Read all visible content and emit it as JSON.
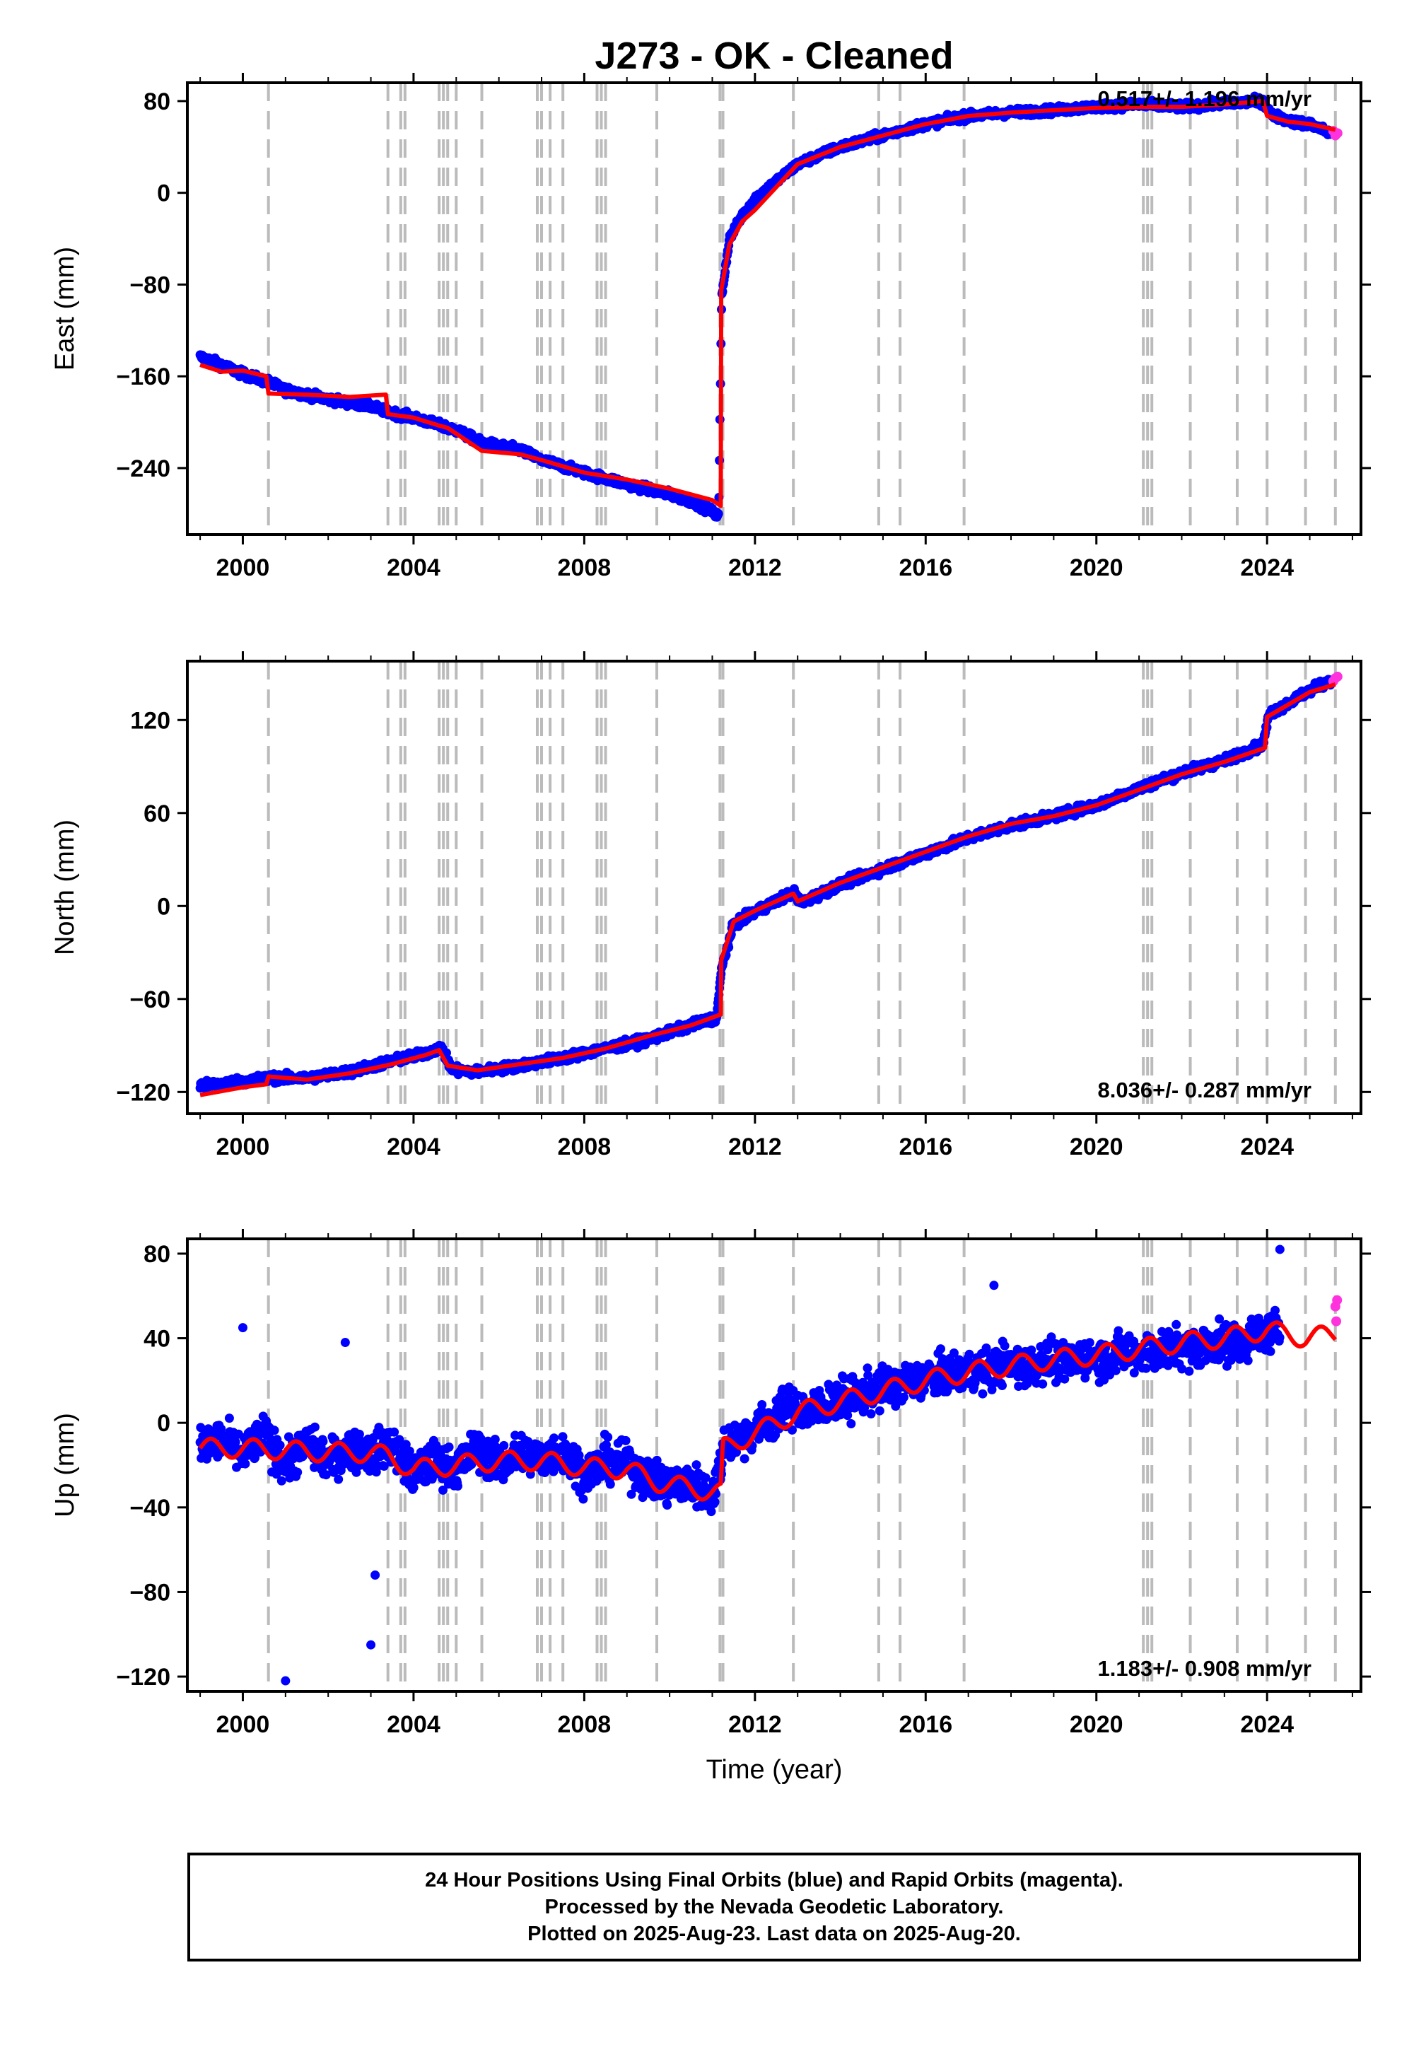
{
  "title": "J273  - OK - Cleaned",
  "xlabel": "Time (year)",
  "footer": {
    "line1": "24 Hour Positions Using Final Orbits (blue) and Rapid Orbits (magenta).",
    "line2": "Processed by the Nevada Geodetic Laboratory.",
    "line3": "Plotted on 2025-Aug-23. Last data on 2025-Aug-20."
  },
  "colors": {
    "final": "#0000ff",
    "rapid": "#ff33dd",
    "model": "#ff0000",
    "steps": "#bbbbbb"
  },
  "chart_data": [
    {
      "type": "scatter",
      "panel": "east",
      "ylabel": "East (mm)",
      "rate_text": "0.517+/- 1.196 mm/yr",
      "xlim": [
        1998.7,
        2026.2
      ],
      "ylim": [
        -298,
        96
      ],
      "xticks": [
        2000,
        2004,
        2008,
        2012,
        2016,
        2020,
        2024
      ],
      "yticks": [
        80,
        0,
        -80,
        -160,
        -240
      ],
      "step_lines": [
        2000.6,
        2003.4,
        2003.7,
        2003.8,
        2004.6,
        2004.7,
        2004.8,
        2005.0,
        2005.6,
        2006.9,
        2007.0,
        2007.2,
        2007.5,
        2008.3,
        2008.4,
        2008.5,
        2009.7,
        2011.18,
        2011.25,
        2012.9,
        2014.9,
        2015.4,
        2016.9,
        2021.1,
        2021.2,
        2021.3,
        2022.2,
        2023.3,
        2024.0,
        2024.9,
        2025.6
      ],
      "series": [
        {
          "name": "model",
          "x": [
            1999.0,
            1999.5,
            2000.0,
            2000.55,
            2000.6,
            2001.5,
            2002.5,
            2003.35,
            2003.4,
            2004.0,
            2004.6,
            2004.8,
            2005.6,
            2006.5,
            2007.0,
            2008.0,
            2009.0,
            2010.0,
            2011.0,
            2011.2,
            2011.21,
            2011.4,
            2011.7,
            2012.0,
            2012.5,
            2013.0,
            2014.0,
            2015.0,
            2016.0,
            2017.0,
            2018.0,
            2019.0,
            2020.0,
            2021.0,
            2022.0,
            2023.0,
            2023.9,
            2024.0,
            2024.5,
            2025.0,
            2025.6
          ],
          "y": [
            -150,
            -156,
            -155,
            -160,
            -175,
            -176,
            -178,
            -176,
            -193,
            -196,
            -203,
            -205,
            -225,
            -228,
            -233,
            -244,
            -250,
            -258,
            -268,
            -273,
            -85,
            -45,
            -25,
            -15,
            5,
            25,
            40,
            50,
            60,
            67,
            70,
            72,
            74,
            75,
            75,
            77,
            80,
            67,
            62,
            60,
            55
          ]
        },
        {
          "name": "final",
          "x": [
            1999.0,
            1999.5,
            2000.0,
            2000.6,
            2001.0,
            2002.0,
            2003.0,
            2003.4,
            2004.0,
            2005.0,
            2005.6,
            2006.5,
            2007.0,
            2008.0,
            2009.0,
            2010.0,
            2010.6,
            2011.0,
            2011.15,
            2011.22,
            2011.4,
            2011.7,
            2012.0,
            2012.5,
            2013.0,
            2014.0,
            2015.0,
            2016.0,
            2017.0,
            2018.0,
            2019.0,
            2020.0,
            2021.0,
            2022.0,
            2023.0,
            2023.9,
            2024.1,
            2024.6,
            2025.0,
            2025.5
          ],
          "y": [
            -143,
            -150,
            -158,
            -165,
            -172,
            -180,
            -186,
            -191,
            -196,
            -207,
            -218,
            -224,
            -233,
            -244,
            -254,
            -263,
            -270,
            -278,
            -282,
            -90,
            -40,
            -20,
            -5,
            10,
            25,
            40,
            50,
            60,
            67,
            70,
            72,
            75,
            77,
            75,
            78,
            80,
            68,
            62,
            60,
            52
          ]
        },
        {
          "name": "rapid",
          "x": [
            2025.55,
            2025.6,
            2025.65
          ],
          "y": [
            54,
            50,
            52
          ]
        }
      ]
    },
    {
      "type": "scatter",
      "panel": "north",
      "ylabel": "North (mm)",
      "rate_text": "8.036+/- 0.287 mm/yr",
      "xlim": [
        1998.7,
        2026.2
      ],
      "ylim": [
        -134,
        158
      ],
      "xticks": [
        2000,
        2004,
        2008,
        2012,
        2016,
        2020,
        2024
      ],
      "yticks": [
        120,
        60,
        0,
        -60,
        -120
      ],
      "step_lines": [
        2000.6,
        2003.4,
        2003.7,
        2003.8,
        2004.6,
        2004.7,
        2004.8,
        2005.0,
        2005.6,
        2006.9,
        2007.0,
        2007.2,
        2007.5,
        2008.3,
        2008.4,
        2008.5,
        2009.7,
        2011.18,
        2011.25,
        2012.9,
        2014.9,
        2015.4,
        2016.9,
        2021.1,
        2021.2,
        2021.3,
        2022.2,
        2023.3,
        2024.0,
        2024.9,
        2025.6
      ],
      "series": [
        {
          "name": "model",
          "x": [
            1999.0,
            2000.0,
            2000.55,
            2000.6,
            2001.5,
            2002.5,
            2003.5,
            2004.3,
            2004.6,
            2004.8,
            2005.5,
            2006.5,
            2007.5,
            2008.5,
            2009.5,
            2010.5,
            2011.2,
            2011.21,
            2011.5,
            2012.0,
            2012.9,
            2013.0,
            2014.0,
            2015.0,
            2016.0,
            2017.0,
            2018.0,
            2019.0,
            2020.0,
            2021.0,
            2022.0,
            2023.0,
            2023.95,
            2024.0,
            2024.5,
            2025.0,
            2025.6
          ],
          "y": [
            -122,
            -117,
            -115,
            -110,
            -112,
            -108,
            -102,
            -96,
            -93,
            -103,
            -106,
            -102,
            -98,
            -92,
            -84,
            -77,
            -70,
            -35,
            -10,
            -3,
            8,
            3,
            15,
            25,
            35,
            45,
            53,
            58,
            65,
            75,
            85,
            93,
            102,
            122,
            130,
            138,
            143
          ]
        },
        {
          "name": "final",
          "x": [
            1999.0,
            2000.0,
            2000.6,
            2001.5,
            2002.5,
            2003.5,
            2004.3,
            2004.65,
            2004.9,
            2005.5,
            2006.5,
            2007.5,
            2008.5,
            2009.5,
            2010.5,
            2011.1,
            2011.22,
            2011.5,
            2012.0,
            2012.9,
            2013.1,
            2014.0,
            2015.0,
            2016.0,
            2017.0,
            2018.0,
            2019.0,
            2020.0,
            2021.0,
            2022.0,
            2023.0,
            2023.9,
            2024.05,
            2024.5,
            2025.0,
            2025.5
          ],
          "y": [
            -116,
            -113,
            -111,
            -111,
            -107,
            -100,
            -95,
            -91,
            -106,
            -107,
            -103,
            -98,
            -92,
            -86,
            -77,
            -72,
            -40,
            -12,
            -4,
            9,
            2,
            14,
            24,
            34,
            44,
            52,
            58,
            65,
            76,
            86,
            94,
            104,
            124,
            131,
            139,
            146
          ]
        },
        {
          "name": "rapid",
          "x": [
            2025.55,
            2025.6,
            2025.65
          ],
          "y": [
            145,
            147,
            148
          ]
        }
      ]
    },
    {
      "type": "scatter",
      "panel": "up",
      "ylabel": "Up (mm)",
      "rate_text": "1.183+/- 0.908 mm/yr",
      "xlim": [
        1998.7,
        2026.2
      ],
      "ylim": [
        -127,
        87
      ],
      "xticks": [
        2000,
        2004,
        2008,
        2012,
        2016,
        2020,
        2024
      ],
      "yticks": [
        80,
        40,
        0,
        -40,
        -80,
        -120
      ],
      "step_lines": [
        2000.6,
        2003.4,
        2003.7,
        2003.8,
        2004.6,
        2004.7,
        2004.8,
        2005.0,
        2005.6,
        2006.9,
        2007.0,
        2007.2,
        2007.5,
        2008.3,
        2008.4,
        2008.5,
        2009.7,
        2011.18,
        2011.25,
        2012.9,
        2014.9,
        2015.4,
        2016.9,
        2021.1,
        2021.2,
        2021.3,
        2022.2,
        2023.3,
        2024.0,
        2024.9,
        2025.6
      ],
      "series": [
        {
          "name": "model",
          "x": [
            1999.0,
            2000.0,
            2001.0,
            2002.0,
            2003.0,
            2003.4,
            2004.0,
            2005.0,
            2006.0,
            2007.0,
            2008.0,
            2009.0,
            2009.7,
            2010.5,
            2011.2,
            2011.25,
            2012.0,
            2013.0,
            2014.0,
            2015.0,
            2016.0,
            2017.0,
            2018.0,
            2019.0,
            2020.0,
            2021.0,
            2022.0,
            2023.0,
            2024.0,
            2024.9,
            2025.6
          ],
          "y": [
            -12,
            -12,
            -13,
            -14,
            -14,
            -16,
            -22,
            -20,
            -18,
            -18,
            -21,
            -22,
            -28,
            -31,
            -33,
            -12,
            -5,
            5,
            10,
            15,
            20,
            24,
            27,
            30,
            32,
            35,
            38,
            40,
            44,
            40,
            42
          ]
        },
        {
          "name": "final",
          "x": [
            1999.0,
            1999.5,
            2000.0,
            2000.5,
            2001.0,
            2001.5,
            2002.0,
            2002.5,
            2003.0,
            2003.5,
            2004.0,
            2004.5,
            2005.0,
            2005.5,
            2006.0,
            2006.5,
            2007.0,
            2007.5,
            2008.0,
            2008.5,
            2009.0,
            2009.5,
            2010.0,
            2010.5,
            2011.0,
            2011.3,
            2011.8,
            2012.3,
            2012.8,
            2013.3,
            2013.8,
            2014.3,
            2014.8,
            2015.3,
            2015.8,
            2016.3,
            2016.8,
            2017.3,
            2017.8,
            2018.3,
            2018.8,
            2019.3,
            2019.8,
            2020.3,
            2020.8,
            2021.3,
            2021.8,
            2022.3,
            2022.8,
            2023.3,
            2023.8,
            2024.3,
            2024.8,
            2025.3,
            2025.5,
            2001.0,
            2003.0,
            2003.1,
            2000.0,
            2002.4,
            2017.6,
            2024.3
          ],
          "y": [
            -12,
            -8,
            -15,
            -6,
            -20,
            -10,
            -18,
            -12,
            -15,
            -10,
            -25,
            -18,
            -22,
            -12,
            -20,
            -14,
            -17,
            -13,
            -24,
            -18,
            -20,
            -26,
            -30,
            -28,
            -35,
            -10,
            -5,
            0,
            8,
            5,
            10,
            12,
            15,
            18,
            20,
            22,
            25,
            24,
            28,
            26,
            30,
            28,
            32,
            30,
            34,
            33,
            36,
            35,
            38,
            37,
            42,
            44,
            40,
            38,
            35,
            -122,
            -105,
            -72,
            45,
            38,
            65,
            82
          ]
        },
        {
          "name": "rapid",
          "x": [
            2025.6,
            2025.62,
            2025.64
          ],
          "y": [
            55,
            48,
            58
          ]
        }
      ]
    }
  ]
}
